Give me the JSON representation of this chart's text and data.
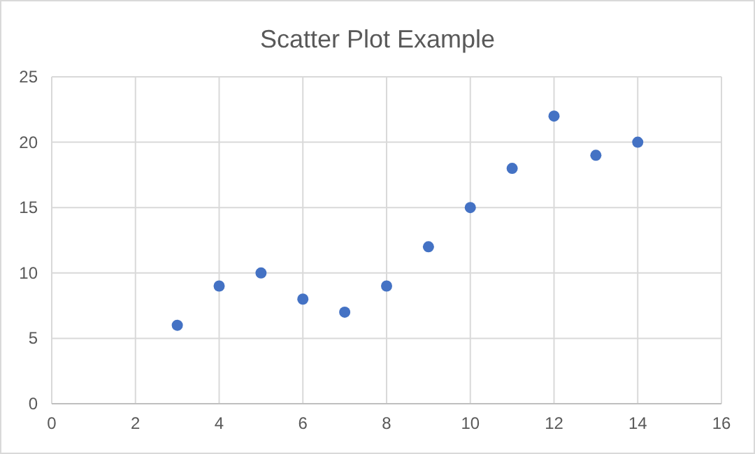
{
  "chart_data": {
    "type": "scatter",
    "title": "Scatter Plot Example",
    "x": [
      3,
      4,
      5,
      6,
      7,
      8,
      9,
      10,
      11,
      12,
      13,
      14
    ],
    "values": [
      6,
      9,
      10,
      8,
      7,
      9,
      12,
      15,
      18,
      22,
      19,
      20
    ],
    "color": "#4472c4",
    "marker": "circle",
    "xlim": [
      0,
      16
    ],
    "xticks": [
      0,
      2,
      4,
      6,
      8,
      10,
      12,
      14,
      16
    ],
    "ylim": [
      0,
      25
    ],
    "yticks": [
      0,
      5,
      10,
      15,
      20,
      25
    ],
    "grid": true
  }
}
